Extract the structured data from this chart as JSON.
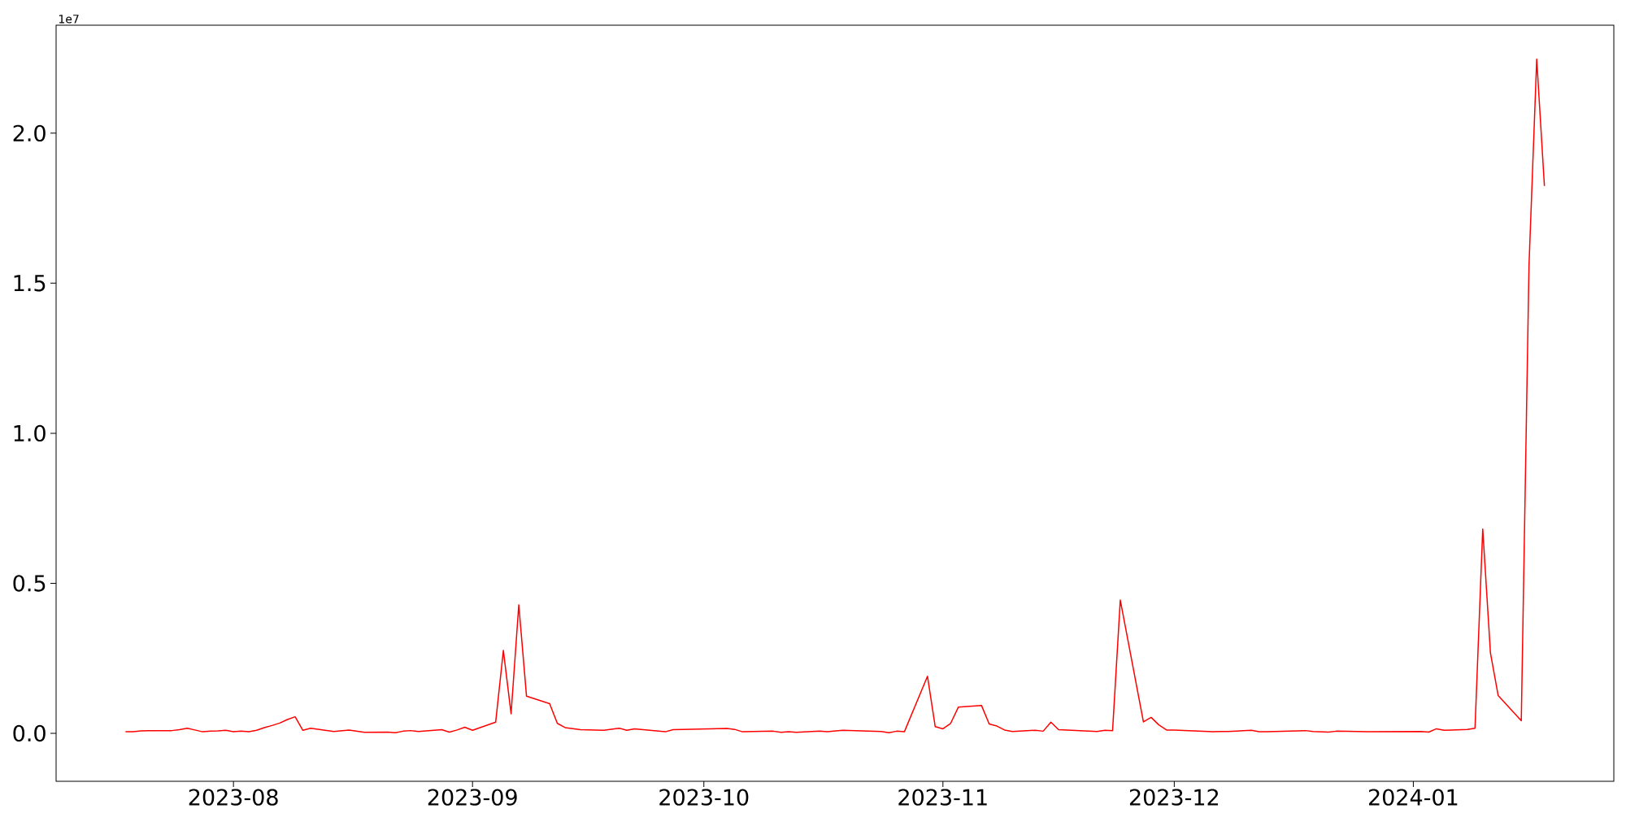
{
  "chart_data": {
    "type": "line",
    "x": [
      "2023-07-18",
      "2023-07-19",
      "2023-07-20",
      "2023-07-21",
      "2023-07-22",
      "2023-07-23",
      "2023-07-24",
      "2023-07-25",
      "2023-07-26",
      "2023-07-27",
      "2023-07-28",
      "2023-07-29",
      "2023-07-30",
      "2023-07-31",
      "2023-08-01",
      "2023-08-02",
      "2023-08-03",
      "2023-08-04",
      "2023-08-05",
      "2023-08-06",
      "2023-08-07",
      "2023-08-08",
      "2023-08-09",
      "2023-08-10",
      "2023-08-11",
      "2023-08-14",
      "2023-08-16",
      "2023-08-18",
      "2023-08-21",
      "2023-08-22",
      "2023-08-23",
      "2023-08-24",
      "2023-08-25",
      "2023-08-28",
      "2023-08-29",
      "2023-08-30",
      "2023-08-31",
      "2023-09-01",
      "2023-09-04",
      "2023-09-05",
      "2023-09-06",
      "2023-09-07",
      "2023-09-08",
      "2023-09-11",
      "2023-09-12",
      "2023-09-13",
      "2023-09-15",
      "2023-09-18",
      "2023-09-20",
      "2023-09-21",
      "2023-09-22",
      "2023-09-26",
      "2023-09-27",
      "2023-10-04",
      "2023-10-05",
      "2023-10-06",
      "2023-10-10",
      "2023-10-11",
      "2023-10-12",
      "2023-10-13",
      "2023-10-16",
      "2023-10-17",
      "2023-10-19",
      "2023-10-24",
      "2023-10-25",
      "2023-10-26",
      "2023-10-27",
      "2023-10-30",
      "2023-10-31",
      "2023-11-01",
      "2023-11-02",
      "2023-11-03",
      "2023-11-06",
      "2023-11-07",
      "2023-11-08",
      "2023-11-09",
      "2023-11-10",
      "2023-11-13",
      "2023-11-14",
      "2023-11-15",
      "2023-11-16",
      "2023-11-21",
      "2023-11-22",
      "2023-11-23",
      "2023-11-24",
      "2023-11-27",
      "2023-11-28",
      "2023-11-29",
      "2023-11-30",
      "2023-12-01",
      "2023-12-06",
      "2023-12-07",
      "2023-12-08",
      "2023-12-11",
      "2023-12-12",
      "2023-12-13",
      "2023-12-14",
      "2023-12-18",
      "2023-12-19",
      "2023-12-21",
      "2023-12-22",
      "2023-12-26",
      "2024-01-02",
      "2024-01-03",
      "2024-01-04",
      "2024-01-05",
      "2024-01-08",
      "2024-01-09",
      "2024-01-10",
      "2024-01-11",
      "2024-01-12",
      "2024-01-15",
      "2024-01-16",
      "2024-01-17",
      "2024-01-18"
    ],
    "series": [
      {
        "color": "#ff0000",
        "values": [
          0.005,
          0.005,
          0.008,
          0.009,
          0.009,
          0.009,
          0.009,
          0.012,
          0.017,
          0.011,
          0.005,
          0.007,
          0.008,
          0.01,
          0.005,
          0.007,
          0.005,
          0.01,
          0.019,
          0.026,
          0.034,
          0.046,
          0.055,
          0.01,
          0.017,
          0.006,
          0.011,
          0.003,
          0.004,
          0.002,
          0.007,
          0.009,
          0.006,
          0.012,
          0.004,
          0.011,
          0.02,
          0.01,
          0.037,
          0.276,
          0.065,
          0.428,
          0.124,
          0.099,
          0.033,
          0.019,
          0.012,
          0.01,
          0.017,
          0.01,
          0.015,
          0.005,
          0.012,
          0.016,
          0.013,
          0.005,
          0.007,
          0.003,
          0.005,
          0.003,
          0.007,
          0.005,
          0.01,
          0.006,
          0.002,
          0.007,
          0.005,
          0.19,
          0.022,
          0.015,
          0.033,
          0.087,
          0.093,
          0.031,
          0.024,
          0.011,
          0.006,
          0.01,
          0.007,
          0.037,
          0.012,
          0.006,
          0.01,
          0.009,
          0.444,
          0.038,
          0.053,
          0.028,
          0.011,
          0.011,
          0.005,
          0.006,
          0.006,
          0.01,
          0.005,
          0.005,
          0.006,
          0.009,
          0.006,
          0.004,
          0.007,
          0.005,
          0.006,
          0.004,
          0.015,
          0.01,
          0.013,
          0.017,
          0.681,
          0.268,
          0.126,
          0.042,
          1.56,
          2.247,
          1.824
        ]
      }
    ],
    "xlim": [
      "2023-07-09",
      "2024-01-27"
    ],
    "ylim": [
      -0.16,
      2.36
    ],
    "xticks": [
      {
        "value": "2023-08-01",
        "label": "2023-08"
      },
      {
        "value": "2023-09-01",
        "label": "2023-09"
      },
      {
        "value": "2023-10-01",
        "label": "2023-10"
      },
      {
        "value": "2023-11-01",
        "label": "2023-11"
      },
      {
        "value": "2023-12-01",
        "label": "2023-12"
      },
      {
        "value": "2024-01-01",
        "label": "2024-01"
      }
    ],
    "yticks": [
      {
        "value": 0,
        "label": "0.0"
      },
      {
        "value": 0.5,
        "label": "0.5"
      },
      {
        "value": 1,
        "label": "1.0"
      },
      {
        "value": 1.5,
        "label": "1.5"
      },
      {
        "value": 2,
        "label": "2.0"
      }
    ],
    "annotations": [
      "1e7"
    ]
  }
}
